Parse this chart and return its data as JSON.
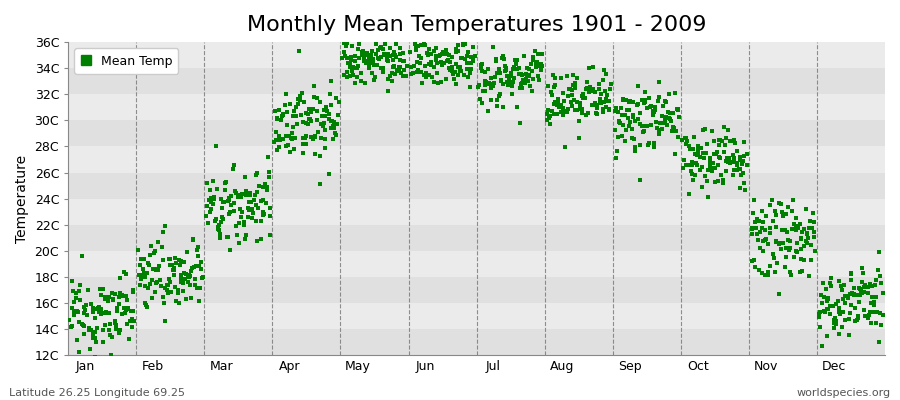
{
  "title": "Monthly Mean Temperatures 1901 - 2009",
  "ylabel": "Temperature",
  "xlabel": "",
  "footer_left": "Latitude 26.25 Longitude 69.25",
  "footer_right": "worldspecies.org",
  "legend_label": "Mean Temp",
  "dot_color": "#008000",
  "dot_size": 5,
  "ylim": [
    12,
    36
  ],
  "yticks": [
    12,
    14,
    16,
    18,
    20,
    22,
    24,
    26,
    28,
    30,
    32,
    34,
    36
  ],
  "ytick_labels": [
    "12C",
    "14C",
    "16C",
    "18C",
    "20C",
    "22C",
    "24C",
    "26C",
    "28C",
    "30C",
    "32C",
    "34C",
    "36C"
  ],
  "months": [
    "Jan",
    "Feb",
    "Mar",
    "Apr",
    "May",
    "Jun",
    "Jul",
    "Aug",
    "Sep",
    "Oct",
    "Nov",
    "Dec"
  ],
  "month_means": [
    15.2,
    18.2,
    23.5,
    30.0,
    34.5,
    34.5,
    33.5,
    31.5,
    30.0,
    27.0,
    21.0,
    16.0
  ],
  "month_stds": [
    1.4,
    1.3,
    1.5,
    1.4,
    0.9,
    0.9,
    1.1,
    1.1,
    1.2,
    1.1,
    1.4,
    1.3
  ],
  "month_trends": [
    0.5,
    0.4,
    0.6,
    0.4,
    0.3,
    0.3,
    0.4,
    0.4,
    0.4,
    0.4,
    0.5,
    0.5
  ],
  "n_years": 109,
  "background_color": "#ffffff",
  "plot_bg_color": "#e8e8e8",
  "grid_color": "#666666",
  "hband_colors": [
    "#e0e0e0",
    "#ebebeb"
  ],
  "title_fontsize": 16,
  "label_fontsize": 10,
  "tick_fontsize": 9,
  "footer_fontsize": 8
}
